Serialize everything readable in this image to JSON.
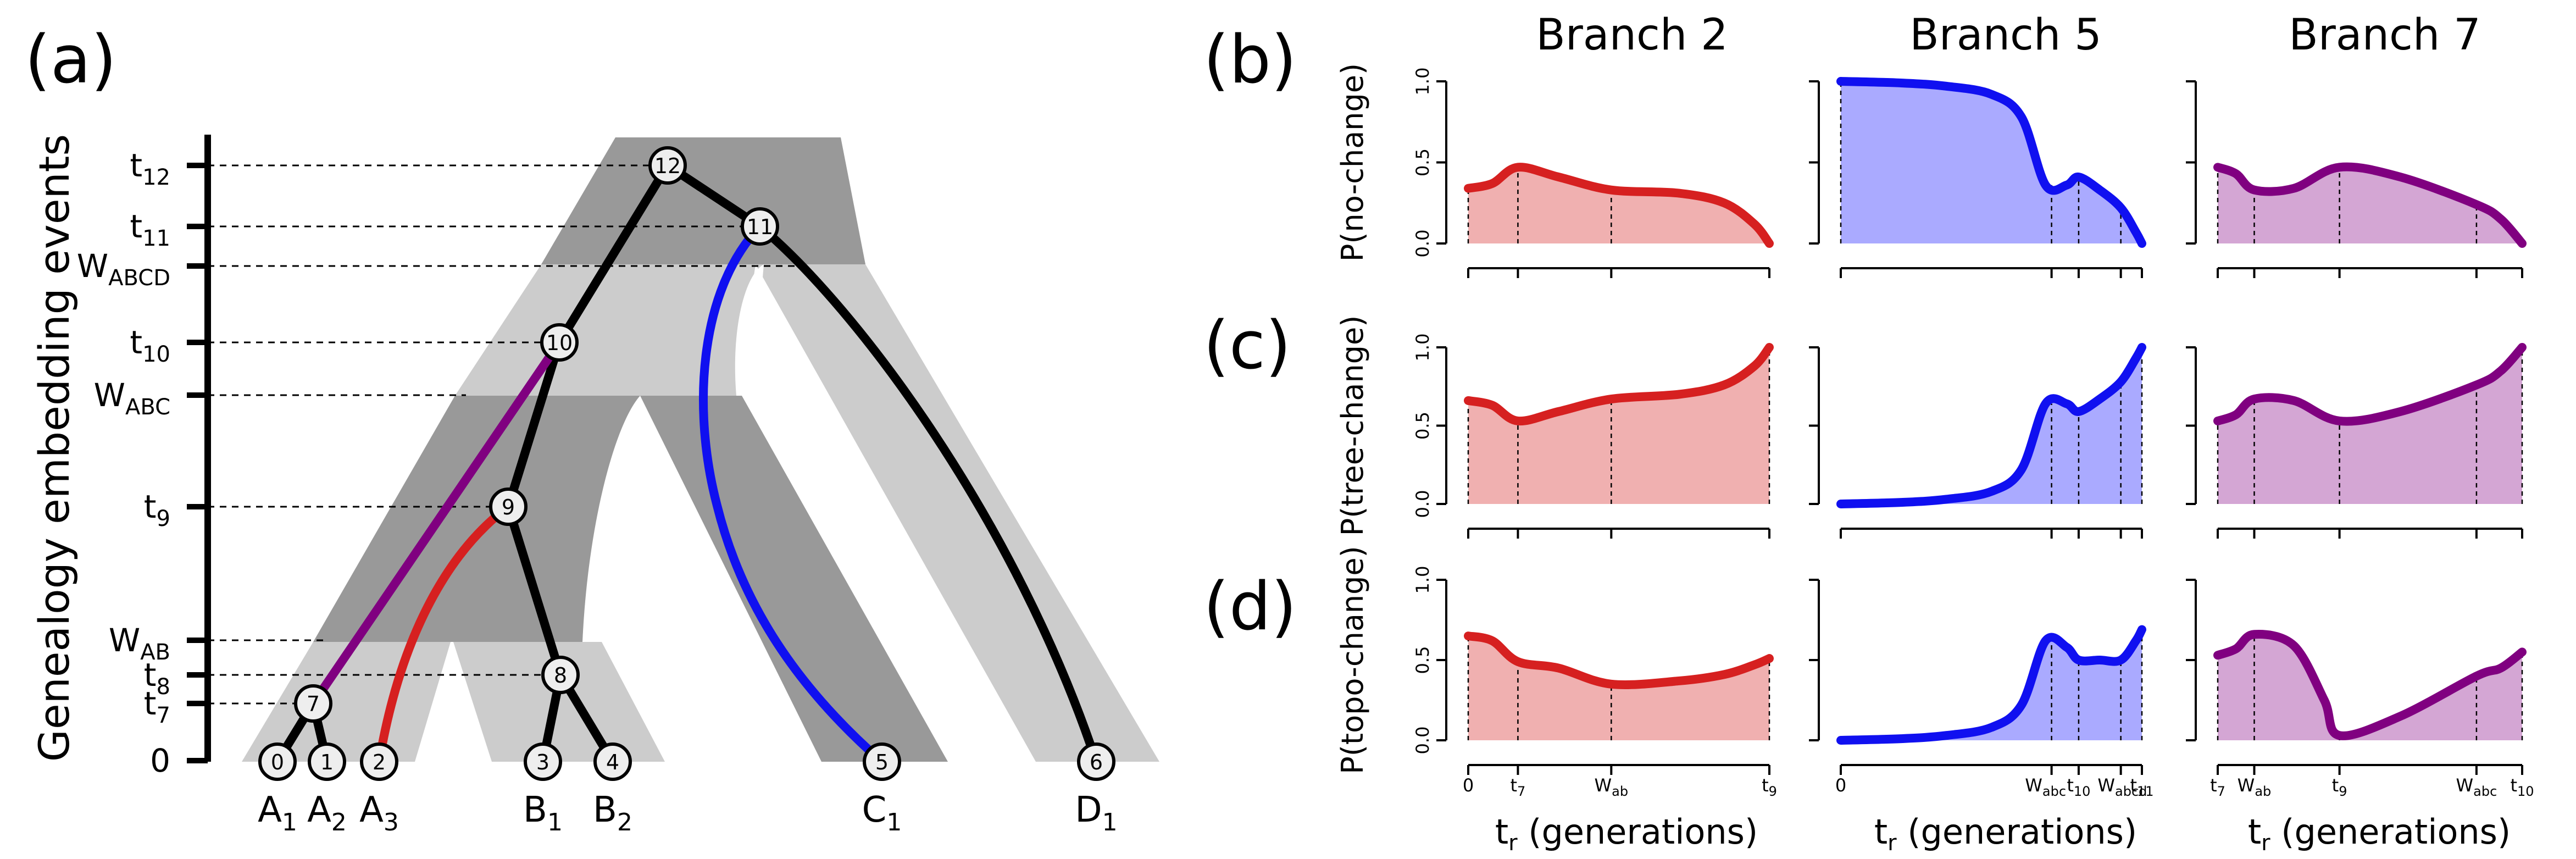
{
  "panels": {
    "a": "(a)",
    "b": "(b)",
    "c": "(c)",
    "d": "(d)"
  },
  "tree": {
    "axis_label": "Genealogy embedding events",
    "events": [
      {
        "base": "t",
        "sub": "12"
      },
      {
        "base": "t",
        "sub": "11"
      },
      {
        "base": "W",
        "sub": "ABCD"
      },
      {
        "base": "t",
        "sub": "10"
      },
      {
        "base": "W",
        "sub": "ABC"
      },
      {
        "base": "t",
        "sub": "9"
      },
      {
        "base": "W",
        "sub": "AB"
      },
      {
        "base": "t",
        "sub": "8"
      },
      {
        "base": "t",
        "sub": "7"
      },
      {
        "base": "0",
        "sub": ""
      }
    ],
    "leaves": [
      {
        "base": "A",
        "sub": "1"
      },
      {
        "base": "A",
        "sub": "2"
      },
      {
        "base": "A",
        "sub": "3"
      },
      {
        "base": "B",
        "sub": "1"
      },
      {
        "base": "B",
        "sub": "2"
      },
      {
        "base": "C",
        "sub": "1"
      },
      {
        "base": "D",
        "sub": "1"
      }
    ],
    "nodes": [
      "0",
      "1",
      "2",
      "3",
      "4",
      "5",
      "6",
      "7",
      "8",
      "9",
      "10",
      "11",
      "12"
    ]
  },
  "columns": [
    "Branch 2",
    "Branch 5",
    "Branch 7"
  ],
  "rows": [
    "P(no-change)",
    "P(tree-change)",
    "P(topo-change)"
  ],
  "y_ticks": [
    "0.0",
    "0.5",
    "1.0"
  ],
  "x_axis_label": {
    "base": "t",
    "sub": "r",
    "rest": " (generations)"
  },
  "colors": {
    "branch2": "#d62020",
    "branch5": "#1010f0",
    "branch7": "#800080",
    "fill2": "#f0b0b0",
    "fill5": "#aaaaff",
    "fill7": "#d4a6d4",
    "dark_gray": "#999999",
    "light_gray": "#cccccc"
  },
  "x_ticks": {
    "branch2": [
      {
        "base": "0",
        "sub": ""
      },
      {
        "base": "t",
        "sub": "7"
      },
      {
        "base": "W",
        "sub": "ab"
      },
      {
        "base": "t",
        "sub": "9"
      }
    ],
    "branch5": [
      {
        "base": "0",
        "sub": ""
      },
      {
        "base": "W",
        "sub": "abc"
      },
      {
        "base": "t",
        "sub": "10"
      },
      {
        "base": "W",
        "sub": "abcd"
      },
      {
        "base": "t",
        "sub": "11"
      }
    ],
    "branch7": [
      {
        "base": "t",
        "sub": "7"
      },
      {
        "base": "W",
        "sub": "ab"
      },
      {
        "base": "t",
        "sub": "9"
      },
      {
        "base": "W",
        "sub": "abc"
      },
      {
        "base": "t",
        "sub": "10"
      }
    ]
  }
}
